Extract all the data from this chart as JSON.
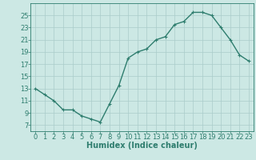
{
  "x": [
    0,
    1,
    2,
    3,
    4,
    5,
    6,
    7,
    8,
    9,
    10,
    11,
    12,
    13,
    14,
    15,
    16,
    17,
    18,
    19,
    20,
    21,
    22,
    23
  ],
  "y": [
    13,
    12,
    11,
    9.5,
    9.5,
    8.5,
    8,
    7.5,
    10.5,
    13.5,
    18,
    19,
    19.5,
    21,
    21.5,
    23.5,
    24,
    25.5,
    25.5,
    25,
    23,
    21,
    18.5,
    17.5
  ],
  "line_color": "#2e7d6e",
  "bg_color": "#cce8e4",
  "grid_color": "#aaccca",
  "tick_label_color": "#2e7d6e",
  "xlabel": "Humidex (Indice chaleur)",
  "xlabel_color": "#2e7d6e",
  "ylim": [
    6,
    27
  ],
  "yticks": [
    7,
    9,
    11,
    13,
    15,
    17,
    19,
    21,
    23,
    25
  ],
  "xticks": [
    0,
    1,
    2,
    3,
    4,
    5,
    6,
    7,
    8,
    9,
    10,
    11,
    12,
    13,
    14,
    15,
    16,
    17,
    18,
    19,
    20,
    21,
    22,
    23
  ],
  "xlim": [
    -0.5,
    23.5
  ],
  "font_size": 6,
  "marker": "+",
  "marker_size": 3.5,
  "line_width": 1.0
}
